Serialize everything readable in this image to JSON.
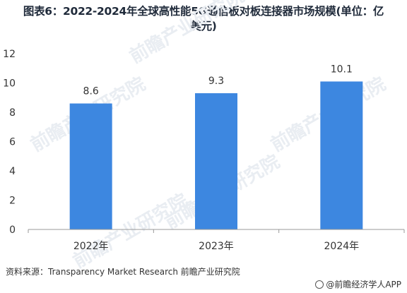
{
  "title_line1": "图表6：2022-2024年全球高性能5G通信板对板连接器市场规模(单位：亿",
  "title_line2": "美元)",
  "source": "资料来源：Transparency Market Research 前瞻产业研究院",
  "brand": "@前瞻经济学人APP",
  "watermark": "前瞻产业研究院",
  "colors": {
    "bar": "#3d87e0",
    "axis": "#999999",
    "text": "#333333"
  },
  "chart_data": {
    "type": "bar",
    "categories": [
      "2022年",
      "2023年",
      "2024年"
    ],
    "values": [
      8.6,
      9.3,
      10.1
    ],
    "data_labels": [
      "8.6",
      "9.3",
      "10.1"
    ],
    "yticks": [
      "0",
      "2",
      "4",
      "6",
      "8",
      "10",
      "12"
    ],
    "ylim": [
      0,
      12
    ],
    "grid": false,
    "legend": "none"
  }
}
